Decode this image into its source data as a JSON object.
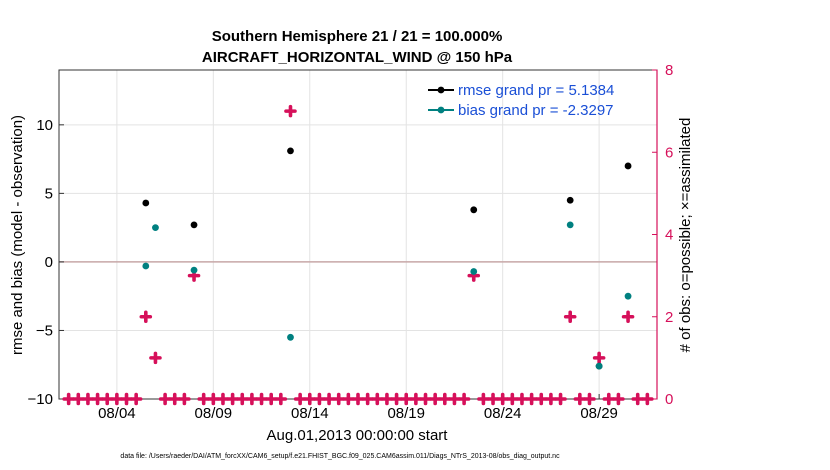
{
  "chart_data": {
    "type": "scatter",
    "title_line1": "Southern Hemisphere 21 / 21 = 100.000%",
    "title_line2": "AIRCRAFT_HORIZONTAL_WIND @ 150 hPa",
    "xlabel": "Aug.01,2013 00:00:00 start",
    "ylabel": "rmse and bias (model - observation)",
    "y2label": "# of obs: o=possible; ×=assimilated",
    "footnote": "data file: /Users/raeder/DAI/ATM_forcXX/CAM6_setup/f.e21.FHIST_BGC.f09_025.CAM6assim.011/Diags_NTrS_2013-08/obs_diag_output.nc",
    "xlim": [
      0.5,
      31.5
    ],
    "ylim": [
      -10,
      14
    ],
    "y2lim": [
      0,
      8.0
    ],
    "x_ticks": [
      3.5,
      8.5,
      13.5,
      18.5,
      23.5,
      28.5
    ],
    "x_tick_labels": [
      "08/04",
      "08/09",
      "08/14",
      "08/19",
      "08/24",
      "08/29"
    ],
    "y_ticks": [
      -10,
      -5,
      0,
      5,
      10
    ],
    "y_tick_labels": [
      "−10",
      "−5",
      "0",
      "5",
      "10"
    ],
    "y2_ticks": [
      0,
      2,
      4,
      6,
      8
    ],
    "y2_tick_labels": [
      "0",
      "2",
      "4",
      "6",
      "8"
    ],
    "colors": {
      "rmse": "#000000",
      "bias": "#008080",
      "obs": "#d6105a",
      "zero_line": "#c8a8a8",
      "grid": "#e3e3e3",
      "legend_text": "#1a4fd6"
    },
    "series": [
      {
        "name": "rmse grand pr = 5.1384",
        "points": [
          [
            5.0,
            4.3
          ],
          [
            7.5,
            2.7
          ],
          [
            12.5,
            8.1
          ],
          [
            22.0,
            3.8
          ],
          [
            27.0,
            4.5
          ],
          [
            28.5,
            -7.6
          ],
          [
            30.0,
            7.0
          ]
        ]
      },
      {
        "name": "bias grand pr = -2.3297",
        "points": [
          [
            5.0,
            -0.3
          ],
          [
            5.5,
            2.5
          ],
          [
            7.5,
            -0.6
          ],
          [
            12.5,
            -5.5
          ],
          [
            22.0,
            -0.7
          ],
          [
            27.0,
            2.7
          ],
          [
            28.5,
            -7.6
          ],
          [
            30.0,
            -2.5
          ]
        ]
      }
    ],
    "obs_possible": {
      "x": [
        1.0,
        1.5,
        2.0,
        2.5,
        3.0,
        3.5,
        4.0,
        4.5,
        5.0,
        5.5,
        6.0,
        6.5,
        7.0,
        7.5,
        8.0,
        8.5,
        9.0,
        9.5,
        10.0,
        10.5,
        11.0,
        11.5,
        12.0,
        12.5,
        13.0,
        13.5,
        14.0,
        14.5,
        15.0,
        15.5,
        16.0,
        16.5,
        17.0,
        17.5,
        18.0,
        18.5,
        19.0,
        19.5,
        20.0,
        20.5,
        21.0,
        21.5,
        22.0,
        22.5,
        23.0,
        23.5,
        24.0,
        24.5,
        25.0,
        25.5,
        26.0,
        26.5,
        27.0,
        27.5,
        28.0,
        28.5,
        29.0,
        29.5,
        30.0,
        30.5,
        31.0
      ],
      "y": [
        0,
        0,
        0,
        0,
        0,
        0,
        0,
        0,
        2,
        1,
        0,
        0,
        0,
        3,
        0,
        0,
        0,
        0,
        0,
        0,
        0,
        0,
        0,
        7,
        0,
        0,
        0,
        0,
        0,
        0,
        0,
        0,
        0,
        0,
        0,
        0,
        0,
        0,
        0,
        0,
        0,
        0,
        3,
        0,
        0,
        0,
        0,
        0,
        0,
        0,
        0,
        0,
        2,
        0,
        0,
        1,
        0,
        0,
        2,
        0,
        0
      ]
    }
  }
}
